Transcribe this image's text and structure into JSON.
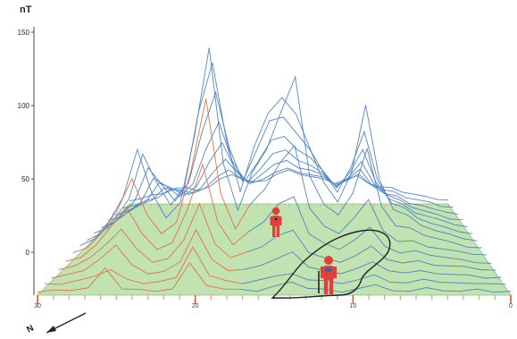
{
  "chart_data": {
    "type": "line",
    "title": "",
    "xlabel": "",
    "ylabel": "",
    "unit_label": "nT",
    "y_ticks": [
      {
        "value": 150,
        "label": "150"
      },
      {
        "value": 100,
        "label": "100"
      },
      {
        "value": 50,
        "label": "50"
      },
      {
        "value": 0,
        "label": "0"
      }
    ],
    "ylim": [
      -20,
      165
    ],
    "x_ticks": [
      {
        "value": 30,
        "label": "30"
      },
      {
        "value": 20,
        "label": "20"
      },
      {
        "value": 10,
        "label": "10"
      },
      {
        "value": 0,
        "label": "0"
      }
    ],
    "grid": false,
    "north_label": "N",
    "legend_position": "none",
    "colors": {
      "profile_high": "#4a7fc1",
      "profile_low": "#e86a3a",
      "ground_plane": "#b9e0a8",
      "figure": "#e0403c",
      "outline": "#222222"
    },
    "icons": [
      "person-figure",
      "person-figure",
      "north-arrow"
    ],
    "series": [
      {
        "values": [
          2,
          3,
          2,
          5,
          18,
          3,
          4,
          2,
          3,
          22,
          6,
          3,
          4,
          2,
          5,
          9,
          4,
          3,
          2,
          4,
          6,
          3,
          2,
          4,
          3,
          2,
          3,
          2,
          2
        ]
      },
      {
        "values": [
          3,
          2,
          4,
          8,
          12,
          5,
          3,
          4,
          6,
          28,
          8,
          4,
          3,
          5,
          7,
          10,
          5,
          4,
          3,
          5,
          8,
          4,
          3,
          5,
          4,
          3,
          2,
          3,
          2
        ]
      },
      {
        "values": [
          2,
          4,
          6,
          15,
          24,
          10,
          5,
          6,
          12,
          35,
          14,
          6,
          8,
          10,
          14,
          20,
          9,
          6,
          5,
          8,
          12,
          7,
          5,
          6,
          5,
          4,
          3,
          2,
          2
        ]
      },
      {
        "values": [
          3,
          5,
          10,
          20,
          30,
          16,
          8,
          10,
          22,
          48,
          20,
          10,
          15,
          18,
          25,
          30,
          14,
          10,
          8,
          12,
          18,
          10,
          7,
          8,
          6,
          5,
          4,
          3,
          2
        ]
      },
      {
        "values": [
          4,
          6,
          14,
          28,
          40,
          22,
          12,
          16,
          38,
          70,
          30,
          14,
          24,
          30,
          42,
          48,
          22,
          15,
          12,
          18,
          26,
          14,
          9,
          10,
          8,
          6,
          4,
          3,
          2
        ]
      },
      {
        "values": [
          5,
          8,
          18,
          34,
          55,
          30,
          18,
          25,
          60,
          110,
          45,
          20,
          38,
          48,
          65,
          78,
          35,
          22,
          18,
          28,
          40,
          20,
          12,
          12,
          9,
          7,
          5,
          4,
          3
        ]
      },
      {
        "values": [
          5,
          9,
          20,
          38,
          70,
          40,
          24,
          34,
          80,
          140,
          60,
          28,
          55,
          70,
          95,
          120,
          52,
          32,
          26,
          40,
          70,
          32,
          18,
          16,
          12,
          9,
          6,
          4,
          3
        ]
      },
      {
        "values": [
          4,
          8,
          18,
          32,
          62,
          42,
          28,
          40,
          90,
          125,
          72,
          36,
          68,
          90,
          100,
          90,
          66,
          42,
          30,
          50,
          95,
          45,
          24,
          20,
          14,
          10,
          7,
          5,
          3
        ]
      },
      {
        "values": [
          4,
          7,
          15,
          26,
          48,
          36,
          26,
          38,
          72,
          100,
          62,
          38,
          60,
          80,
          82,
          72,
          60,
          44,
          32,
          48,
          72,
          40,
          24,
          20,
          14,
          10,
          7,
          5,
          3
        ]
      },
      {
        "values": [
          3,
          6,
          12,
          20,
          36,
          30,
          24,
          32,
          55,
          75,
          48,
          34,
          48,
          62,
          64,
          56,
          50,
          40,
          30,
          40,
          55,
          34,
          22,
          18,
          13,
          10,
          7,
          5,
          3
        ]
      },
      {
        "values": [
          3,
          5,
          10,
          16,
          28,
          24,
          20,
          26,
          42,
          56,
          38,
          28,
          38,
          48,
          50,
          44,
          40,
          34,
          26,
          32,
          42,
          28,
          20,
          16,
          12,
          9,
          6,
          4,
          3
        ]
      },
      {
        "values": [
          2,
          4,
          8,
          12,
          20,
          18,
          16,
          20,
          30,
          40,
          30,
          22,
          30,
          36,
          38,
          34,
          32,
          28,
          22,
          26,
          32,
          22,
          16,
          14,
          10,
          8,
          5,
          4,
          2
        ]
      },
      {
        "values": [
          2,
          3,
          6,
          9,
          14,
          13,
          12,
          15,
          22,
          28,
          22,
          18,
          22,
          26,
          28,
          26,
          24,
          22,
          18,
          20,
          24,
          18,
          14,
          12,
          9,
          7,
          5,
          3,
          2
        ]
      },
      {
        "values": [
          2,
          3,
          5,
          7,
          10,
          10,
          9,
          11,
          16,
          20,
          16,
          14,
          16,
          20,
          22,
          20,
          18,
          16,
          14,
          16,
          18,
          14,
          11,
          10,
          8,
          6,
          4,
          3,
          2
        ]
      }
    ]
  }
}
